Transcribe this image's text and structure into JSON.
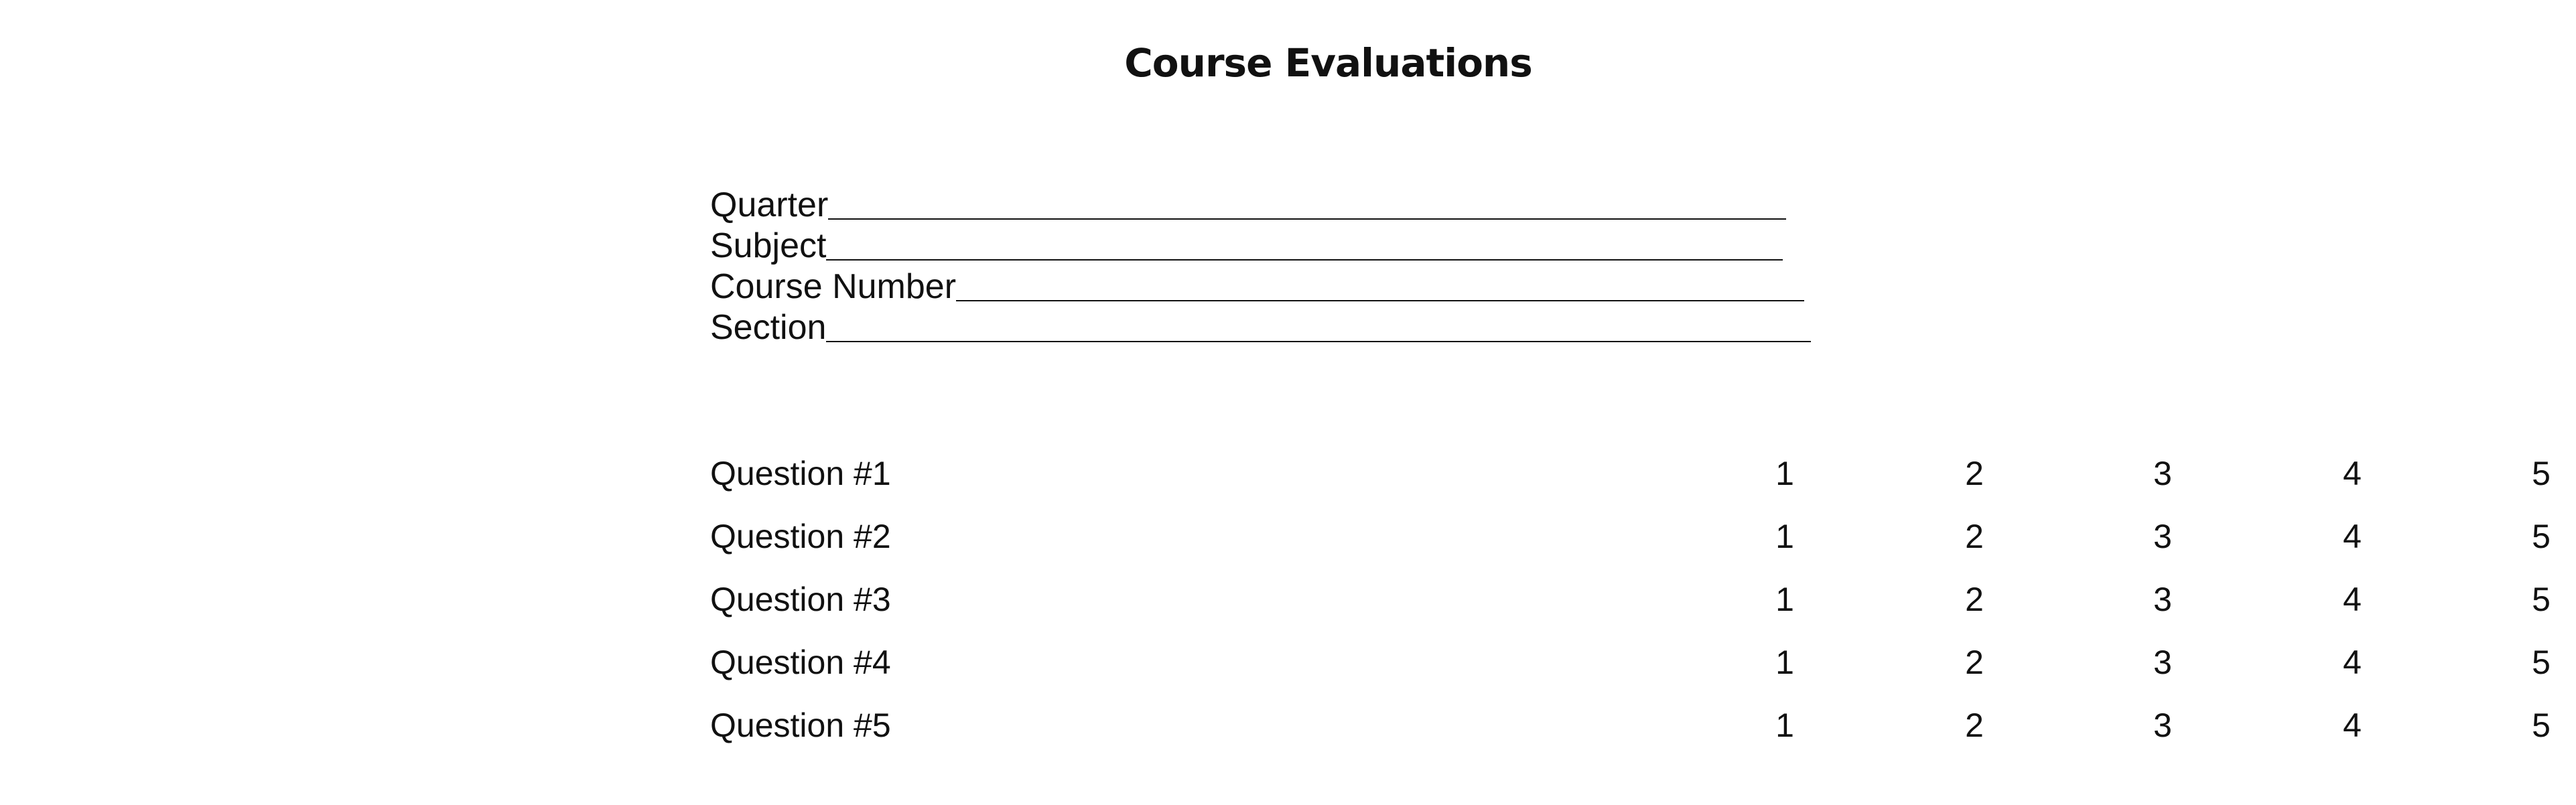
{
  "title": "Course Evaluations",
  "fields": [
    {
      "label": "Quarter "
    },
    {
      "label": "Subject "
    },
    {
      "label": "Course Number "
    },
    {
      "label": "Section"
    }
  ],
  "questions": [
    {
      "label": "Question #1",
      "options": [
        "1",
        "2",
        "3",
        "4",
        "5"
      ]
    },
    {
      "label": "Question #2",
      "options": [
        "1",
        "2",
        "3",
        "4",
        "5"
      ]
    },
    {
      "label": "Question #3",
      "options": [
        "1",
        "2",
        "3",
        "4",
        "5"
      ]
    },
    {
      "label": "Question #4",
      "options": [
        "1",
        "2",
        "3",
        "4",
        "5"
      ]
    },
    {
      "label": "Question #5",
      "options": [
        "1",
        "2",
        "3",
        "4",
        "5"
      ]
    }
  ]
}
